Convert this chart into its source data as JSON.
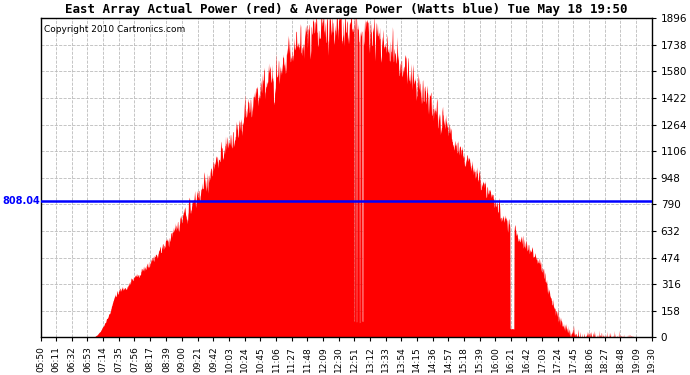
{
  "title": "East Array Actual Power (red) & Average Power (Watts blue) Tue May 18 19:50",
  "copyright": "Copyright 2010 Cartronics.com",
  "avg_power": 808.04,
  "ymax": 1896.0,
  "yticks": [
    0.0,
    158.0,
    316.0,
    474.0,
    632.0,
    790.0,
    948.0,
    1106.0,
    1264.0,
    1422.0,
    1580.0,
    1738.0,
    1896.0
  ],
  "bg_color": "#ffffff",
  "fill_color": "#ff0000",
  "avg_line_color": "#0000ff",
  "grid_color": "#bbbbbb",
  "time_labels": [
    "05:50",
    "06:11",
    "06:32",
    "06:53",
    "07:14",
    "07:35",
    "07:56",
    "08:17",
    "08:39",
    "09:00",
    "09:21",
    "09:42",
    "10:03",
    "10:24",
    "10:45",
    "11:06",
    "11:27",
    "11:48",
    "12:09",
    "12:30",
    "12:51",
    "13:12",
    "13:33",
    "13:54",
    "14:15",
    "14:36",
    "14:57",
    "15:18",
    "15:39",
    "16:00",
    "16:21",
    "16:42",
    "17:03",
    "17:24",
    "17:45",
    "18:06",
    "18:27",
    "18:48",
    "19:09",
    "19:30"
  ],
  "noon_time": "12:30",
  "sigma_rise": 150.0,
  "sigma_fall": 160.0,
  "peak_power": 1870.0,
  "curve_start_time": "07:00",
  "curve_end_time": "19:10"
}
